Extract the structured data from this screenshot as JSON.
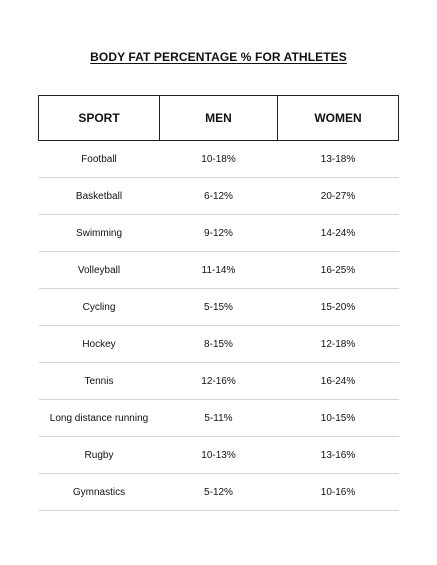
{
  "title": "BODY FAT PERCENTAGE % FOR ATHLETES",
  "columns": [
    "SPORT",
    "MEN",
    "WOMEN"
  ],
  "rows": [
    {
      "sport": "Football",
      "men": "10-18%",
      "women": "13-18%"
    },
    {
      "sport": "Basketball",
      "men": "6-12%",
      "women": "20-27%"
    },
    {
      "sport": "Swimming",
      "men": "9-12%",
      "women": "14-24%"
    },
    {
      "sport": "Volleyball",
      "men": "11-14%",
      "women": "16-25%"
    },
    {
      "sport": "Cycling",
      "men": "5-15%",
      "women": "15-20%"
    },
    {
      "sport": "Hockey",
      "men": "8-15%",
      "women": "12-18%"
    },
    {
      "sport": "Tennis",
      "men": "12-16%",
      "women": "16-24%"
    },
    {
      "sport": "Long distance running",
      "men": "5-11%",
      "women": "10-15%"
    },
    {
      "sport": "Rugby",
      "men": "10-13%",
      "women": "13-16%"
    },
    {
      "sport": "Gymnastics",
      "men": "5-12%",
      "women": "10-16%"
    }
  ]
}
